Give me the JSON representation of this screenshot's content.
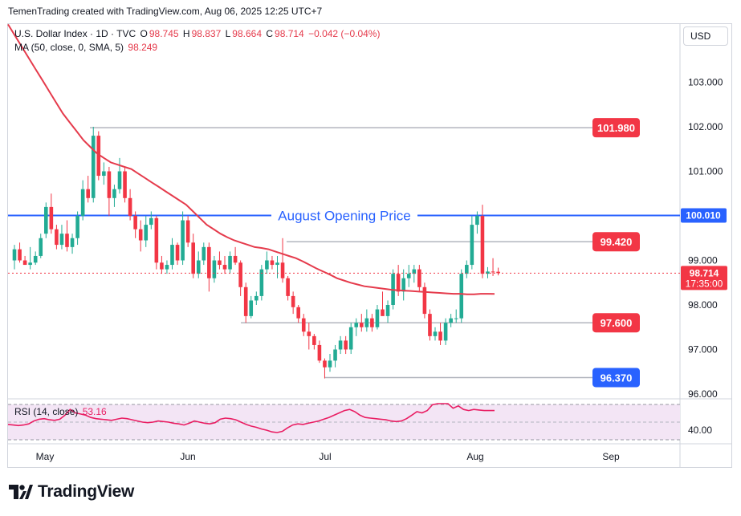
{
  "header": {
    "title": "TemenTrading created with TradingView.com, Aug 06, 2025 12:25 UTC+7"
  },
  "legend": {
    "symbol": "U.S. Dollar Index · 1D · TVC",
    "open_label": "O",
    "open": "98.745",
    "high_label": "H",
    "high": "98.837",
    "low_label": "L",
    "low": "98.664",
    "close_label": "C",
    "close": "98.714",
    "change": "−0.042 (−0.04%)",
    "ma_label": "MA (50, close, 0, SMA, 5)",
    "ma_value": "98.249",
    "rsi_label": "RSI (14, close)",
    "rsi_value": "53.16"
  },
  "currency": "USD",
  "brand": "TradingView",
  "colors": {
    "up": "#22ab94",
    "down": "#f23645",
    "ma": "#e53b4c",
    "level_line": "#2962ff",
    "rsi": "#e91e63",
    "rsi_band": "#f3e5f5"
  },
  "chart_data": {
    "type": "candlestick",
    "ylim": [
      95.8,
      104.2
    ],
    "y_ticks": [
      "103.000",
      "102.000",
      "101.000",
      "99.000",
      "98.000",
      "97.000",
      "96.000"
    ],
    "x_ticks": [
      "May",
      "Jun",
      "Jul",
      "Aug",
      "Sep"
    ],
    "candles": [
      {
        "o": 99.0,
        "h": 99.35,
        "l": 98.8,
        "c": 99.25
      },
      {
        "o": 99.25,
        "h": 99.4,
        "l": 98.95,
        "c": 99.0
      },
      {
        "o": 99.0,
        "h": 99.1,
        "l": 98.9,
        "c": 98.9
      },
      {
        "o": 98.9,
        "h": 99.3,
        "l": 98.8,
        "c": 98.95
      },
      {
        "o": 98.95,
        "h": 99.2,
        "l": 98.9,
        "c": 99.1
      },
      {
        "o": 99.1,
        "h": 99.6,
        "l": 99.05,
        "c": 99.5
      },
      {
        "o": 99.6,
        "h": 100.3,
        "l": 99.5,
        "c": 100.2
      },
      {
        "o": 100.2,
        "h": 100.5,
        "l": 99.6,
        "c": 99.7
      },
      {
        "o": 99.7,
        "h": 99.8,
        "l": 99.25,
        "c": 99.35
      },
      {
        "o": 99.35,
        "h": 99.8,
        "l": 99.25,
        "c": 99.6
      },
      {
        "o": 99.6,
        "h": 99.9,
        "l": 99.2,
        "c": 99.3
      },
      {
        "o": 99.3,
        "h": 99.6,
        "l": 99.15,
        "c": 99.5
      },
      {
        "o": 99.5,
        "h": 100.1,
        "l": 99.35,
        "c": 100.0
      },
      {
        "o": 100.0,
        "h": 100.8,
        "l": 99.9,
        "c": 100.6
      },
      {
        "o": 100.6,
        "h": 100.9,
        "l": 100.3,
        "c": 100.4
      },
      {
        "o": 100.4,
        "h": 102.0,
        "l": 100.3,
        "c": 101.8
      },
      {
        "o": 101.8,
        "h": 101.9,
        "l": 100.8,
        "c": 100.9
      },
      {
        "o": 100.9,
        "h": 101.2,
        "l": 100.7,
        "c": 101.0
      },
      {
        "o": 101.0,
        "h": 101.1,
        "l": 100.0,
        "c": 100.4
      },
      {
        "o": 100.4,
        "h": 100.7,
        "l": 100.2,
        "c": 100.6
      },
      {
        "o": 100.6,
        "h": 101.3,
        "l": 100.5,
        "c": 101.0
      },
      {
        "o": 101.0,
        "h": 101.1,
        "l": 100.3,
        "c": 100.4
      },
      {
        "o": 100.4,
        "h": 100.6,
        "l": 99.9,
        "c": 100.0
      },
      {
        "o": 100.0,
        "h": 100.1,
        "l": 99.5,
        "c": 99.7
      },
      {
        "o": 99.7,
        "h": 99.9,
        "l": 99.2,
        "c": 99.45
      },
      {
        "o": 99.45,
        "h": 100.0,
        "l": 99.3,
        "c": 99.8
      },
      {
        "o": 99.8,
        "h": 100.1,
        "l": 99.7,
        "c": 99.95
      },
      {
        "o": 99.95,
        "h": 100.0,
        "l": 98.8,
        "c": 98.95
      },
      {
        "o": 98.95,
        "h": 99.1,
        "l": 98.7,
        "c": 98.8
      },
      {
        "o": 98.8,
        "h": 99.0,
        "l": 98.7,
        "c": 98.9
      },
      {
        "o": 98.9,
        "h": 99.5,
        "l": 98.8,
        "c": 99.35
      },
      {
        "o": 99.35,
        "h": 99.4,
        "l": 98.9,
        "c": 99.0
      },
      {
        "o": 99.0,
        "h": 100.1,
        "l": 98.9,
        "c": 99.9
      },
      {
        "o": 99.9,
        "h": 100.0,
        "l": 99.3,
        "c": 99.4
      },
      {
        "o": 99.4,
        "h": 99.6,
        "l": 98.6,
        "c": 98.7
      },
      {
        "o": 98.7,
        "h": 99.2,
        "l": 98.6,
        "c": 99.0
      },
      {
        "o": 99.0,
        "h": 99.4,
        "l": 98.9,
        "c": 99.3
      },
      {
        "o": 99.3,
        "h": 99.4,
        "l": 98.3,
        "c": 98.6
      },
      {
        "o": 98.6,
        "h": 99.1,
        "l": 98.5,
        "c": 99.0
      },
      {
        "o": 99.0,
        "h": 99.2,
        "l": 98.8,
        "c": 98.9
      },
      {
        "o": 98.9,
        "h": 99.1,
        "l": 98.7,
        "c": 98.8
      },
      {
        "o": 98.8,
        "h": 99.2,
        "l": 98.7,
        "c": 99.1
      },
      {
        "o": 99.1,
        "h": 99.3,
        "l": 98.9,
        "c": 98.95
      },
      {
        "o": 98.95,
        "h": 99.0,
        "l": 98.2,
        "c": 98.4
      },
      {
        "o": 98.4,
        "h": 98.5,
        "l": 97.6,
        "c": 97.75
      },
      {
        "o": 97.75,
        "h": 98.2,
        "l": 97.7,
        "c": 98.1
      },
      {
        "o": 98.1,
        "h": 98.3,
        "l": 98.0,
        "c": 98.2
      },
      {
        "o": 98.2,
        "h": 98.9,
        "l": 98.1,
        "c": 98.8
      },
      {
        "o": 98.8,
        "h": 99.2,
        "l": 98.7,
        "c": 99.0
      },
      {
        "o": 99.0,
        "h": 99.1,
        "l": 98.8,
        "c": 98.9
      },
      {
        "o": 98.9,
        "h": 99.1,
        "l": 98.6,
        "c": 98.95
      },
      {
        "o": 98.95,
        "h": 99.5,
        "l": 98.5,
        "c": 98.6
      },
      {
        "o": 98.6,
        "h": 98.65,
        "l": 98.1,
        "c": 98.2
      },
      {
        "o": 98.2,
        "h": 98.3,
        "l": 97.8,
        "c": 97.95
      },
      {
        "o": 97.95,
        "h": 98.0,
        "l": 97.6,
        "c": 97.7
      },
      {
        "o": 97.7,
        "h": 97.8,
        "l": 97.3,
        "c": 97.4
      },
      {
        "o": 97.4,
        "h": 97.6,
        "l": 97.0,
        "c": 97.3
      },
      {
        "o": 97.3,
        "h": 97.35,
        "l": 97.0,
        "c": 97.1
      },
      {
        "o": 97.1,
        "h": 97.2,
        "l": 96.7,
        "c": 96.75
      },
      {
        "o": 96.75,
        "h": 96.8,
        "l": 96.35,
        "c": 96.6
      },
      {
        "o": 96.6,
        "h": 96.9,
        "l": 96.5,
        "c": 96.75
      },
      {
        "o": 96.75,
        "h": 97.1,
        "l": 96.6,
        "c": 97.0
      },
      {
        "o": 97.0,
        "h": 97.3,
        "l": 96.9,
        "c": 97.2
      },
      {
        "o": 97.2,
        "h": 97.3,
        "l": 96.9,
        "c": 97.0
      },
      {
        "o": 97.0,
        "h": 97.6,
        "l": 96.9,
        "c": 97.5
      },
      {
        "o": 97.5,
        "h": 97.7,
        "l": 97.3,
        "c": 97.6
      },
      {
        "o": 97.6,
        "h": 97.8,
        "l": 97.4,
        "c": 97.5
      },
      {
        "o": 97.5,
        "h": 97.9,
        "l": 97.4,
        "c": 97.7
      },
      {
        "o": 97.7,
        "h": 97.8,
        "l": 97.4,
        "c": 97.5
      },
      {
        "o": 97.5,
        "h": 98.0,
        "l": 97.45,
        "c": 97.9
      },
      {
        "o": 97.9,
        "h": 98.3,
        "l": 97.8,
        "c": 97.75
      },
      {
        "o": 97.75,
        "h": 98.1,
        "l": 97.6,
        "c": 98.0
      },
      {
        "o": 98.0,
        "h": 98.8,
        "l": 97.9,
        "c": 98.7
      },
      {
        "o": 98.7,
        "h": 98.9,
        "l": 98.2,
        "c": 98.3
      },
      {
        "o": 98.3,
        "h": 98.8,
        "l": 98.1,
        "c": 98.6
      },
      {
        "o": 98.6,
        "h": 98.9,
        "l": 98.4,
        "c": 98.7
      },
      {
        "o": 98.7,
        "h": 98.9,
        "l": 98.5,
        "c": 98.8
      },
      {
        "o": 98.8,
        "h": 98.9,
        "l": 98.3,
        "c": 98.4
      },
      {
        "o": 98.4,
        "h": 98.5,
        "l": 97.7,
        "c": 97.8
      },
      {
        "o": 97.8,
        "h": 97.9,
        "l": 97.2,
        "c": 97.3
      },
      {
        "o": 97.3,
        "h": 97.5,
        "l": 97.2,
        "c": 97.4
      },
      {
        "o": 97.4,
        "h": 97.6,
        "l": 97.1,
        "c": 97.2
      },
      {
        "o": 97.2,
        "h": 97.7,
        "l": 97.1,
        "c": 97.6
      },
      {
        "o": 97.6,
        "h": 97.8,
        "l": 97.5,
        "c": 97.7
      },
      {
        "o": 97.7,
        "h": 97.9,
        "l": 97.6,
        "c": 97.7
      },
      {
        "o": 97.7,
        "h": 98.8,
        "l": 97.6,
        "c": 98.7
      },
      {
        "o": 98.7,
        "h": 99.0,
        "l": 98.6,
        "c": 98.9
      },
      {
        "o": 98.9,
        "h": 100.0,
        "l": 98.8,
        "c": 99.8
      },
      {
        "o": 99.8,
        "h": 100.1,
        "l": 99.6,
        "c": 100.0
      },
      {
        "o": 100.0,
        "h": 100.25,
        "l": 98.6,
        "c": 98.7
      },
      {
        "o": 98.7,
        "h": 98.85,
        "l": 98.6,
        "c": 98.75
      },
      {
        "o": 98.75,
        "h": 99.05,
        "l": 98.65,
        "c": 98.745
      },
      {
        "o": 98.745,
        "h": 98.837,
        "l": 98.664,
        "c": 98.714
      }
    ],
    "ma": [
      104.3,
      104.05,
      103.8,
      103.55,
      103.3,
      103.05,
      102.8,
      102.55,
      102.3,
      102.1,
      101.9,
      101.7,
      101.55,
      101.4,
      101.3,
      101.2,
      101.15,
      101.1,
      101.05,
      100.95,
      100.85,
      100.75,
      100.65,
      100.55,
      100.45,
      100.35,
      100.25,
      100.1,
      99.95,
      99.8,
      99.7,
      99.6,
      99.52,
      99.45,
      99.4,
      99.35,
      99.3,
      99.28,
      99.25,
      99.2,
      99.15,
      99.1,
      99.05,
      98.98,
      98.9,
      98.82,
      98.75,
      98.68,
      98.6,
      98.55,
      98.5,
      98.46,
      98.42,
      98.4,
      98.38,
      98.36,
      98.34,
      98.33,
      98.32,
      98.31,
      98.3,
      98.29,
      98.28,
      98.27,
      98.26,
      98.25,
      98.25,
      98.24,
      98.24,
      98.25,
      98.25,
      98.249
    ],
    "rsi": [
      46,
      45,
      44,
      45,
      47,
      52,
      55,
      56,
      54,
      53,
      55,
      62,
      72,
      66,
      64,
      62,
      58,
      56,
      55,
      54,
      53,
      55,
      57,
      56,
      54,
      52,
      50,
      49,
      50,
      52,
      51,
      50,
      48,
      47,
      45,
      48,
      52,
      50,
      48,
      47,
      49,
      55,
      57,
      56,
      54,
      50,
      46,
      43,
      41,
      38,
      36,
      33,
      32,
      34,
      40,
      45,
      47,
      46,
      48,
      50,
      52,
      55,
      58,
      62,
      66,
      70,
      72,
      68,
      62,
      58,
      57,
      56,
      55,
      54,
      52,
      51,
      52,
      56,
      62,
      68,
      66,
      70,
      80,
      84,
      85,
      82,
      74,
      78,
      72,
      70,
      72,
      71,
      70,
      70,
      70
    ],
    "levels": [
      {
        "label": "101.980",
        "value": 101.98,
        "color": "#f23645",
        "style": "thin"
      },
      {
        "label": "100.010",
        "value": 100.01,
        "color": "#2962ff",
        "style": "thick"
      },
      {
        "label": "99.420",
        "value": 99.42,
        "color": "#f23645",
        "style": "thin"
      },
      {
        "label": "97.600",
        "value": 97.6,
        "color": "#f23645",
        "style": "thin"
      },
      {
        "label": "96.370",
        "value": 96.37,
        "color": "#2962ff",
        "style": "thin"
      }
    ],
    "annotation": "August Opening Price",
    "price_label": "98.714",
    "countdown": "17:35:00",
    "rsi_tick": "40.00"
  }
}
